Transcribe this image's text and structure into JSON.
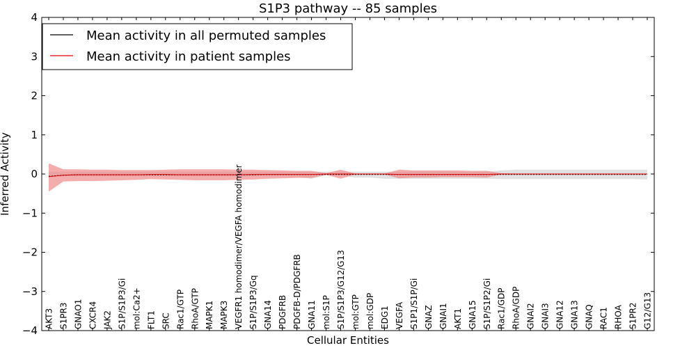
{
  "chart_data": {
    "type": "line",
    "title": "S1P3 pathway -- 85 samples",
    "xlabel": "Cellular Entities",
    "ylabel": "Inferred Activity",
    "ylim": [
      -4,
      4
    ],
    "yticks": [
      {
        "value": -4,
        "label": "−4"
      },
      {
        "value": -3,
        "label": "−3"
      },
      {
        "value": -2,
        "label": "−2"
      },
      {
        "value": -1,
        "label": "−1"
      },
      {
        "value": 0,
        "label": "0"
      },
      {
        "value": 1,
        "label": "1"
      },
      {
        "value": 2,
        "label": "2"
      },
      {
        "value": 3,
        "label": "3"
      },
      {
        "value": 4,
        "label": "4"
      }
    ],
    "categories": [
      "AKT3",
      "S1PR3",
      "GNAO1",
      "CXCR4",
      "JAK2",
      "S1P/S1P3/Gi",
      "mol:Ca2+",
      "FLT1",
      "SRC",
      "Rac1/GTP",
      "RhoA/GTP",
      "MAPK1",
      "MAPK3",
      "VEGFR1 homodimer/VEGFA homodimer",
      "S1P/S1P3/Gq",
      "GNA14",
      "PDGFRB",
      "PDGFB-D/PDGFRB",
      "GNA11",
      "mol:S1P",
      "S1P/S1P3/G12/G13",
      "mol:GTP",
      "mol:GDP",
      "EDG1",
      "VEGFA",
      "S1P1/S1P/Gi",
      "GNAZ",
      "GNAI1",
      "AKT1",
      "GNA15",
      "S1P/S1P2/Gi",
      "Rac1/GDP",
      "RhoA/GDP",
      "GNAI2",
      "GNAI3",
      "GNA12",
      "GNA13",
      "GNAQ",
      "RAC1",
      "RHOA",
      "S1PR2",
      "G12/G13"
    ],
    "legend": {
      "position": "top-left",
      "entries": [
        {
          "label": "Mean activity in all permuted samples",
          "color": "#000000"
        },
        {
          "label": "Mean activity in patient samples",
          "color": "#e00000"
        }
      ]
    },
    "series": [
      {
        "name": "Mean activity in all permuted samples",
        "color": "#000000",
        "values": [
          -0.06,
          -0.03,
          -0.02,
          -0.02,
          -0.02,
          -0.02,
          -0.02,
          -0.02,
          -0.02,
          -0.02,
          -0.02,
          -0.02,
          -0.02,
          -0.02,
          -0.02,
          -0.01,
          -0.01,
          -0.01,
          -0.01,
          -0.01,
          -0.01,
          -0.01,
          -0.01,
          -0.01,
          -0.01,
          -0.01,
          -0.01,
          -0.01,
          -0.01,
          -0.01,
          -0.01,
          -0.01,
          -0.01,
          -0.01,
          -0.01,
          -0.01,
          -0.01,
          -0.01,
          -0.01,
          -0.01,
          -0.01,
          -0.01
        ],
        "band_upper": [
          0.06,
          0.06,
          0.06,
          0.06,
          0.06,
          0.06,
          0.06,
          0.06,
          0.06,
          0.06,
          0.06,
          0.06,
          0.06,
          0.06,
          0.06,
          0.06,
          0.06,
          0.06,
          0.06,
          0.06,
          0.06,
          0.06,
          0.06,
          0.06,
          0.06,
          0.06,
          0.06,
          0.06,
          0.06,
          0.06,
          0.06,
          0.09,
          0.11,
          0.11,
          0.11,
          0.11,
          0.11,
          0.11,
          0.11,
          0.11,
          0.11,
          0.11
        ],
        "band_lower": [
          -0.06,
          -0.06,
          -0.06,
          -0.06,
          -0.06,
          -0.06,
          -0.06,
          -0.06,
          -0.06,
          -0.06,
          -0.06,
          -0.06,
          -0.06,
          -0.06,
          -0.06,
          -0.06,
          -0.06,
          -0.06,
          -0.12,
          -0.03,
          -0.03,
          -0.09,
          -0.09,
          -0.12,
          -0.12,
          -0.12,
          -0.12,
          -0.12,
          -0.12,
          -0.12,
          -0.12,
          -0.13,
          -0.13,
          -0.13,
          -0.13,
          -0.13,
          -0.13,
          -0.13,
          -0.13,
          -0.13,
          -0.13,
          -0.14
        ]
      },
      {
        "name": "Mean activity in patient samples",
        "color": "#e00000",
        "values": [
          -0.07,
          -0.03,
          -0.02,
          -0.02,
          -0.02,
          -0.02,
          -0.02,
          -0.01,
          -0.01,
          -0.02,
          -0.02,
          -0.02,
          -0.02,
          -0.02,
          -0.01,
          -0.01,
          -0.01,
          -0.01,
          -0.01,
          0.0,
          0.0,
          0.0,
          0.0,
          0.0,
          -0.01,
          -0.01,
          -0.01,
          -0.01,
          -0.01,
          -0.01,
          -0.01,
          0.0,
          0.0,
          0.0,
          0.0,
          0.0,
          0.0,
          0.0,
          0.0,
          0.0,
          0.0,
          0.0
        ],
        "band_upper": [
          0.27,
          0.12,
          0.12,
          0.11,
          0.11,
          0.1,
          0.1,
          0.1,
          0.11,
          0.12,
          0.12,
          0.12,
          0.12,
          0.11,
          0.11,
          0.1,
          0.09,
          0.08,
          0.08,
          0.02,
          0.11,
          0.01,
          0.01,
          0.01,
          0.11,
          0.09,
          0.09,
          0.09,
          0.09,
          0.08,
          0.08,
          0.02,
          0.01,
          0.01,
          0.01,
          0.01,
          0.01,
          0.01,
          0.01,
          0.01,
          0.01,
          0.01
        ],
        "band_lower": [
          -0.45,
          -0.19,
          -0.18,
          -0.18,
          -0.17,
          -0.16,
          -0.15,
          -0.13,
          -0.14,
          -0.15,
          -0.16,
          -0.16,
          -0.16,
          -0.15,
          -0.14,
          -0.12,
          -0.11,
          -0.1,
          -0.1,
          -0.02,
          -0.12,
          -0.01,
          -0.01,
          -0.01,
          -0.11,
          -0.09,
          -0.09,
          -0.08,
          -0.08,
          -0.08,
          -0.09,
          -0.01,
          -0.01,
          -0.01,
          -0.01,
          -0.01,
          -0.01,
          -0.01,
          -0.01,
          -0.01,
          -0.01,
          -0.01
        ]
      }
    ]
  }
}
